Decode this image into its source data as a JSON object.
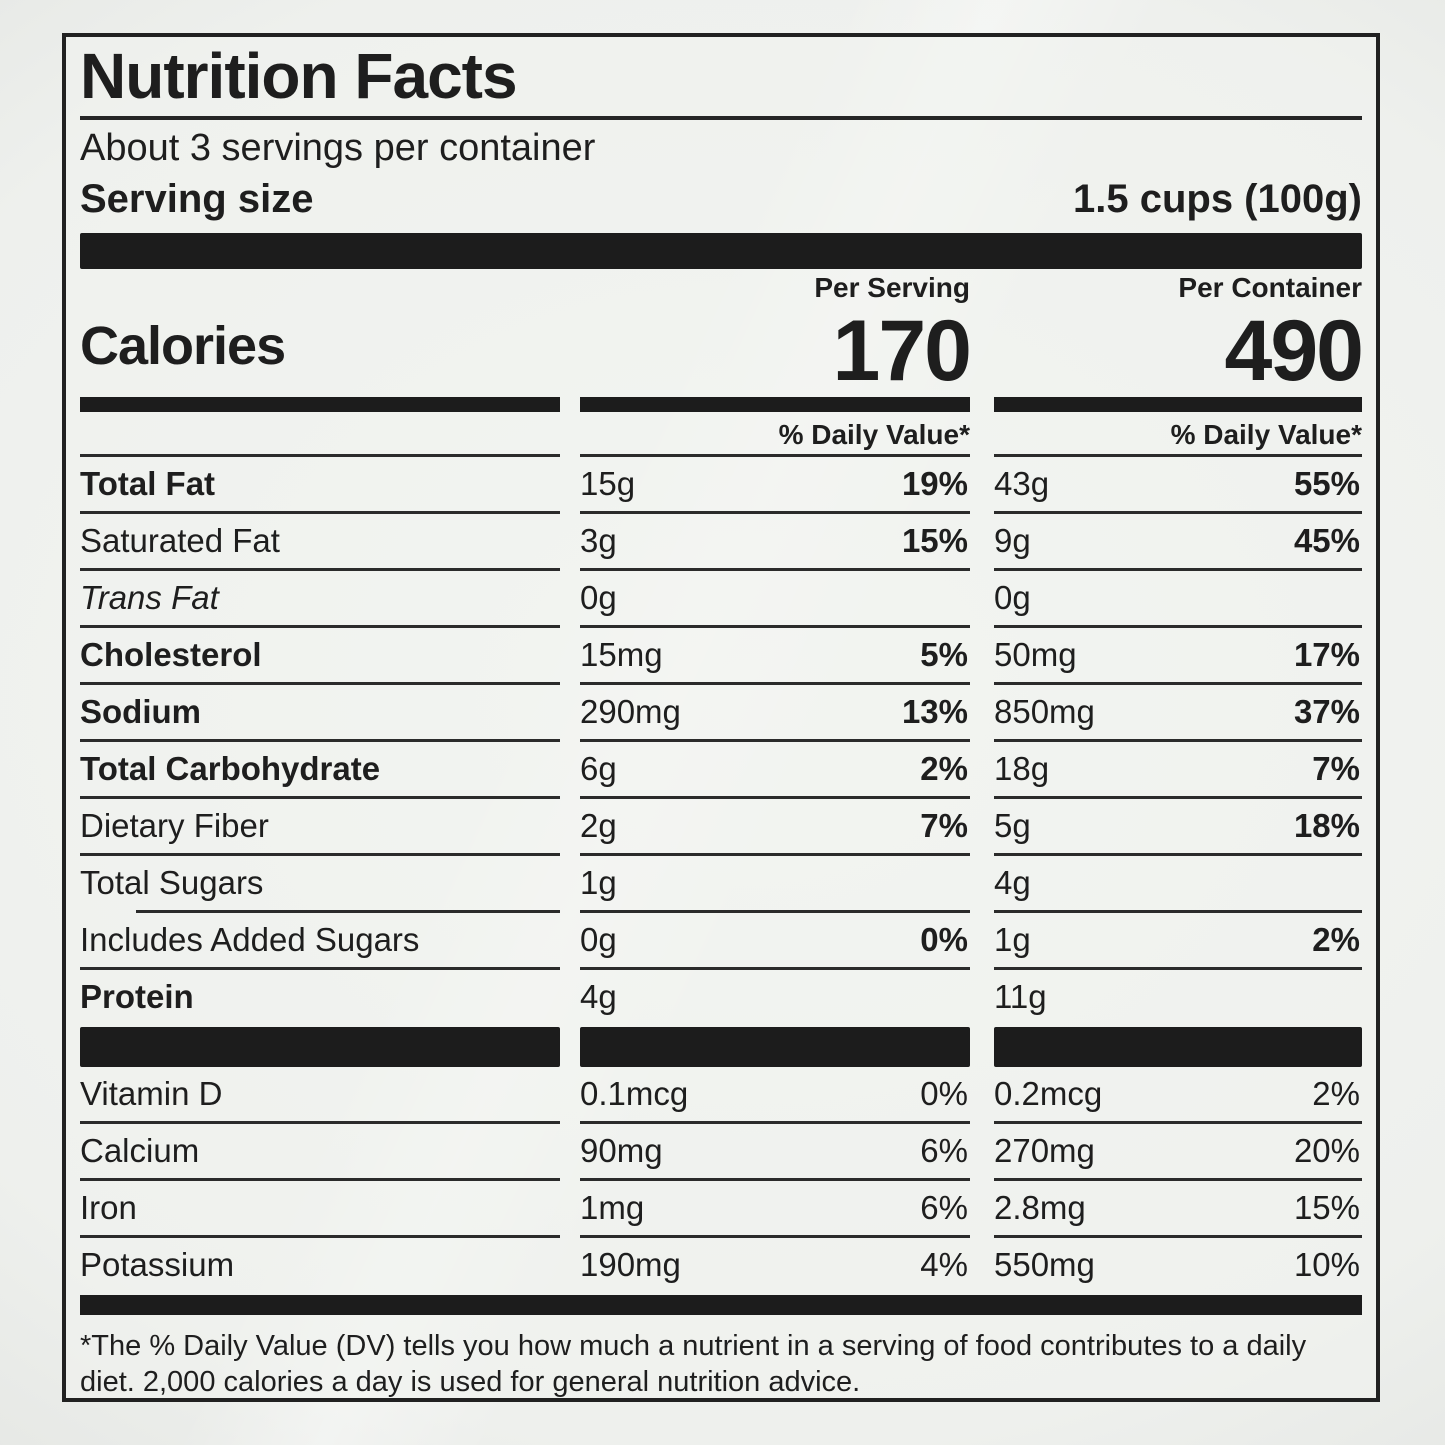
{
  "colors": {
    "text": "#1e1e1e",
    "bars": "#1c1c1c",
    "background": "#eef0ed"
  },
  "header": {
    "title": "Nutrition Facts",
    "servings_per_container": "About 3 servings per container",
    "serving_size_label": "Serving size",
    "serving_size_value": "1.5 cups (100g)"
  },
  "calories": {
    "label": "Calories",
    "per_serving_label": "Per Serving",
    "per_serving_value": "170",
    "per_container_label": "Per Container",
    "per_container_value": "490",
    "daily_value_header": "% Daily Value*"
  },
  "nutrients": [
    {
      "name": "Total Fat",
      "serving_amount": "15g",
      "serving_dv": "19%",
      "container_amount": "43g",
      "container_dv": "55%"
    },
    {
      "name": "Saturated Fat",
      "serving_amount": "3g",
      "serving_dv": "15%",
      "container_amount": "9g",
      "container_dv": "45%"
    },
    {
      "name": "Trans Fat",
      "serving_amount": "0g",
      "serving_dv": "",
      "container_amount": "0g",
      "container_dv": ""
    },
    {
      "name": "Cholesterol",
      "serving_amount": "15mg",
      "serving_dv": "5%",
      "container_amount": "50mg",
      "container_dv": "17%"
    },
    {
      "name": "Sodium",
      "serving_amount": "290mg",
      "serving_dv": "13%",
      "container_amount": "850mg",
      "container_dv": "37%"
    },
    {
      "name": "Total Carbohydrate",
      "serving_amount": "6g",
      "serving_dv": "2%",
      "container_amount": "18g",
      "container_dv": "7%"
    },
    {
      "name": "Dietary Fiber",
      "serving_amount": "2g",
      "serving_dv": "7%",
      "container_amount": "5g",
      "container_dv": "18%"
    },
    {
      "name": "Total Sugars",
      "serving_amount": "1g",
      "serving_dv": "",
      "container_amount": "4g",
      "container_dv": ""
    },
    {
      "name": "Includes Added Sugars",
      "serving_amount": "0g",
      "serving_dv": "0%",
      "container_amount": "1g",
      "container_dv": "2%"
    },
    {
      "name": "Protein",
      "serving_amount": "4g",
      "serving_dv": "",
      "container_amount": "11g",
      "container_dv": ""
    }
  ],
  "vitamins": [
    {
      "name": "Vitamin D",
      "serving_amount": "0.1mcg",
      "serving_dv": "0%",
      "container_amount": "0.2mcg",
      "container_dv": "2%"
    },
    {
      "name": "Calcium",
      "serving_amount": "90mg",
      "serving_dv": "6%",
      "container_amount": "270mg",
      "container_dv": "20%"
    },
    {
      "name": "Iron",
      "serving_amount": "1mg",
      "serving_dv": "6%",
      "container_amount": "2.8mg",
      "container_dv": "15%"
    },
    {
      "name": "Potassium",
      "serving_amount": "190mg",
      "serving_dv": "4%",
      "container_amount": "550mg",
      "container_dv": "10%"
    }
  ],
  "footnote": {
    "text": "*The % Daily Value (DV) tells you how much a nutrient in a serving of food contributes to a daily diet. 2,000 calories a day is used for general nutrition advice."
  }
}
